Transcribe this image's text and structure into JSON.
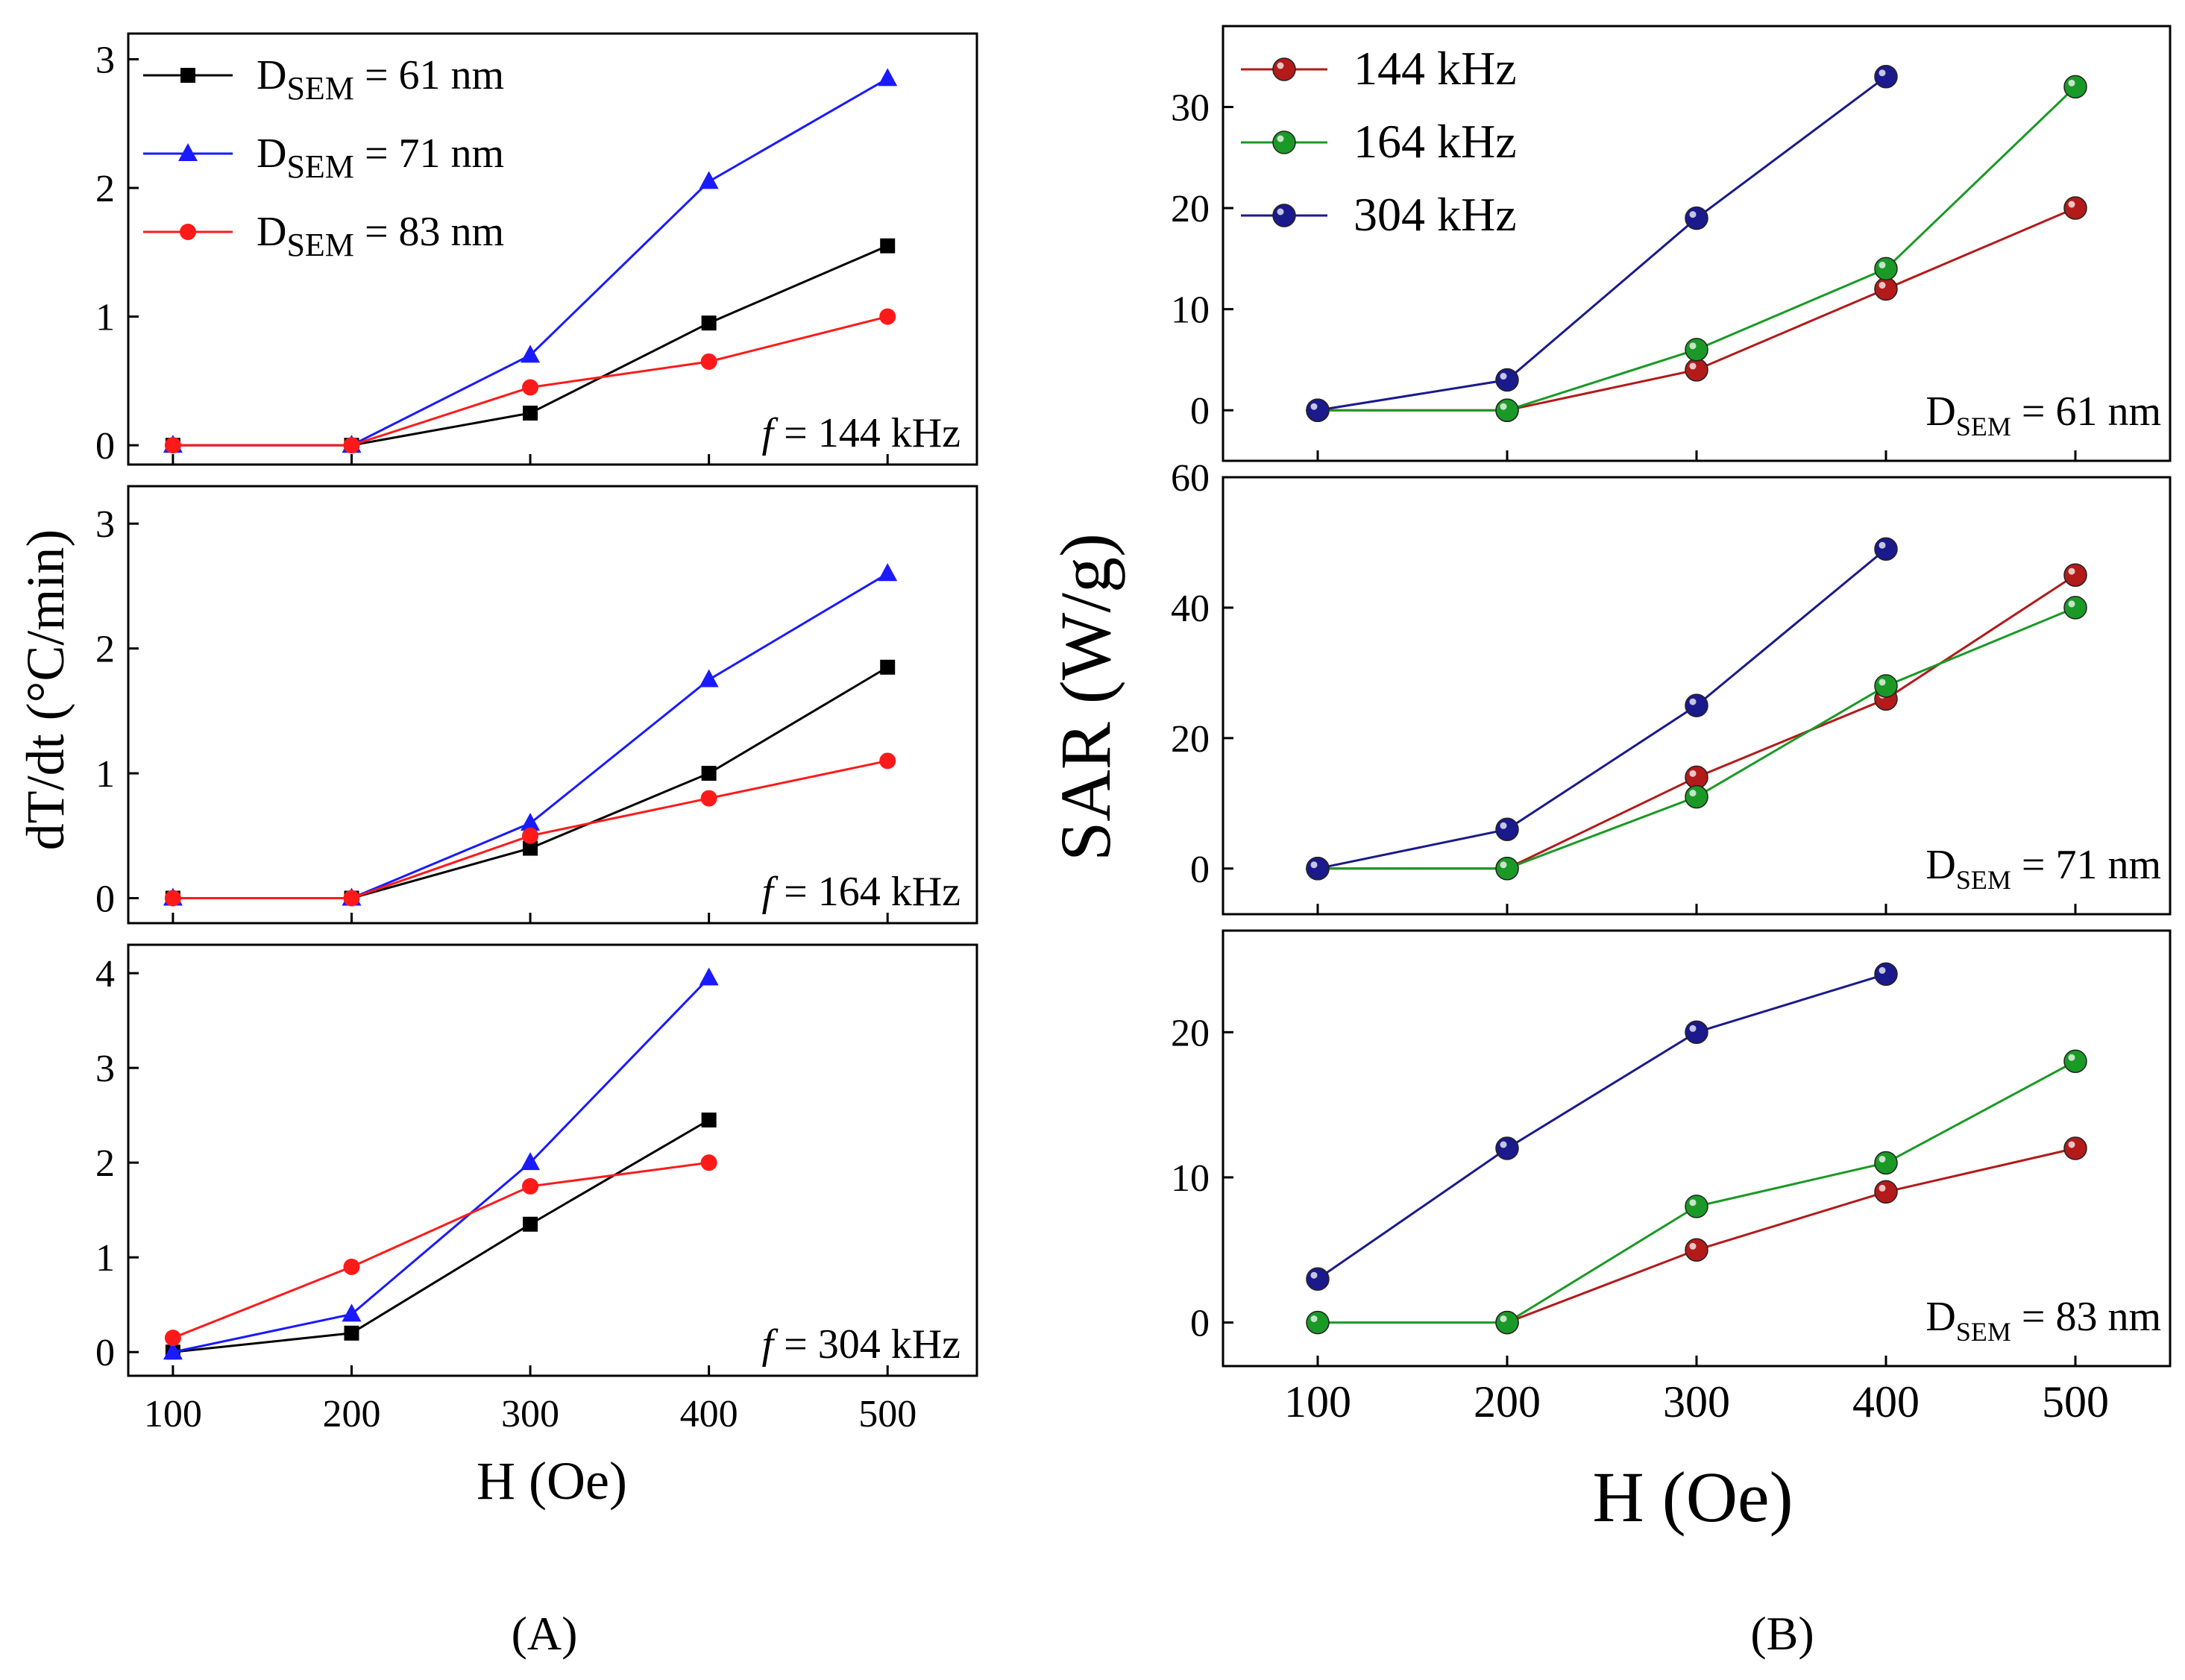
{
  "figure": {
    "panel_labels": [
      "(A)",
      "(B)"
    ]
  },
  "colors": {
    "d61": "#000000",
    "d71": "#1a1aff",
    "d83": "#ff1a1a",
    "f144": "#b31a1a",
    "f164": "#1a9926",
    "f304": "#1a1a8c"
  },
  "chart_data": [
    {
      "id": "A1",
      "type": "line",
      "annotation_f": "f",
      "annotation_text": " = 144 kHz",
      "xlabel": "",
      "ylabel": "dT/dt (°C/min)",
      "x": [
        100,
        200,
        300,
        400,
        500
      ],
      "xlim": [
        75,
        550
      ],
      "ylim": [
        -0.15,
        3.2
      ],
      "yticks": [
        0,
        1,
        2,
        3
      ],
      "series": [
        {
          "name": "D_SEM = 61 nm",
          "label_main": "D",
          "label_sub": "SEM",
          "label_rest": " = 61 nm",
          "color_key": "d61",
          "marker": "square",
          "values": [
            0,
            0,
            0.25,
            0.95,
            1.55
          ]
        },
        {
          "name": "D_SEM = 71 nm",
          "label_main": "D",
          "label_sub": "SEM",
          "label_rest": " = 71 nm",
          "color_key": "d71",
          "marker": "triangle",
          "values": [
            0,
            0,
            0.7,
            2.05,
            2.85
          ]
        },
        {
          "name": "D_SEM = 83 nm",
          "label_main": "D",
          "label_sub": "SEM",
          "label_rest": " = 83 nm",
          "color_key": "d83",
          "marker": "circle",
          "values": [
            0,
            0,
            0.45,
            0.65,
            1.0
          ]
        }
      ]
    },
    {
      "id": "A2",
      "type": "line",
      "annotation_f": "f",
      "annotation_text": " = 164 kHz",
      "x": [
        100,
        200,
        300,
        400,
        500
      ],
      "xlim": [
        75,
        550
      ],
      "ylim": [
        -0.2,
        3.3
      ],
      "yticks": [
        0,
        1,
        2,
        3
      ],
      "series": [
        {
          "name": "D_SEM = 61 nm",
          "color_key": "d61",
          "marker": "square",
          "values": [
            0,
            0,
            0.4,
            1.0,
            1.85
          ]
        },
        {
          "name": "D_SEM = 71 nm",
          "color_key": "d71",
          "marker": "triangle",
          "values": [
            0,
            0,
            0.6,
            1.75,
            2.6
          ]
        },
        {
          "name": "D_SEM = 83 nm",
          "color_key": "d83",
          "marker": "circle",
          "values": [
            0,
            0,
            0.5,
            0.8,
            1.1
          ]
        }
      ]
    },
    {
      "id": "A3",
      "type": "line",
      "annotation_f": "f",
      "annotation_text": " = 304 kHz",
      "xlabel": "H (Oe)",
      "x": [
        100,
        200,
        300,
        400
      ],
      "xlim": [
        75,
        550
      ],
      "ylim": [
        -0.25,
        4.3
      ],
      "yticks": [
        0,
        1,
        2,
        3,
        4
      ],
      "xticks": [
        100,
        200,
        300,
        400,
        500
      ],
      "series": [
        {
          "name": "D_SEM = 61 nm",
          "color_key": "d61",
          "marker": "square",
          "values": [
            0,
            0.2,
            1.35,
            2.45
          ]
        },
        {
          "name": "D_SEM = 71 nm",
          "color_key": "d71",
          "marker": "triangle",
          "values": [
            0,
            0.4,
            2.0,
            3.95
          ]
        },
        {
          "name": "D_SEM = 83 nm",
          "color_key": "d83",
          "marker": "circle",
          "values": [
            0.15,
            0.9,
            1.75,
            2.0
          ]
        }
      ]
    },
    {
      "id": "B1",
      "type": "line",
      "annotation_main": "D",
      "annotation_sub": "SEM",
      "annotation_rest": " = 61 nm",
      "ylabel": "SAR (W/g)",
      "x": [
        100,
        200,
        300,
        400,
        500
      ],
      "xlim": [
        50,
        550
      ],
      "ylim": [
        -5,
        38
      ],
      "yticks": [
        0,
        10,
        20,
        30
      ],
      "series": [
        {
          "name": "144 kHz",
          "color_key": "f144",
          "x": [
            100,
            200,
            300,
            400,
            500
          ],
          "values": [
            0,
            0,
            4,
            12,
            20
          ]
        },
        {
          "name": "164 kHz",
          "color_key": "f164",
          "x": [
            100,
            200,
            300,
            400,
            500
          ],
          "values": [
            0,
            0,
            6,
            14,
            32
          ]
        },
        {
          "name": "304 kHz",
          "color_key": "f304",
          "x": [
            100,
            200,
            300,
            400
          ],
          "values": [
            0,
            3,
            19,
            33
          ]
        }
      ]
    },
    {
      "id": "B2",
      "type": "line",
      "annotation_main": "D",
      "annotation_sub": "SEM",
      "annotation_rest": " = 71 nm",
      "x": [
        100,
        200,
        300,
        400,
        500
      ],
      "xlim": [
        50,
        550
      ],
      "ylim": [
        -7,
        60
      ],
      "yticks": [
        0,
        20,
        40,
        60
      ],
      "series": [
        {
          "name": "144 kHz",
          "color_key": "f144",
          "x": [
            100,
            200,
            300,
            400,
            500
          ],
          "values": [
            0,
            0,
            14,
            26,
            45
          ]
        },
        {
          "name": "164 kHz",
          "color_key": "f164",
          "x": [
            100,
            200,
            300,
            400,
            500
          ],
          "values": [
            0,
            0,
            11,
            28,
            40
          ]
        },
        {
          "name": "304 kHz",
          "color_key": "f304",
          "x": [
            100,
            200,
            300,
            400
          ],
          "values": [
            0,
            6,
            25,
            49
          ]
        }
      ]
    },
    {
      "id": "B3",
      "type": "line",
      "annotation_main": "D",
      "annotation_sub": "SEM",
      "annotation_rest": " = 83 nm",
      "xlabel": "H (Oe)",
      "x": [
        100,
        200,
        300,
        400,
        500
      ],
      "xlim": [
        50,
        550
      ],
      "ylim": [
        -3,
        27
      ],
      "yticks": [
        0,
        10,
        20
      ],
      "xticks": [
        100,
        200,
        300,
        400,
        500
      ],
      "series": [
        {
          "name": "144 kHz",
          "color_key": "f144",
          "x": [
            200,
            300,
            400,
            500
          ],
          "values": [
            0,
            5,
            9,
            12
          ]
        },
        {
          "name": "164 kHz",
          "color_key": "f164",
          "x": [
            100,
            200,
            300,
            400,
            500
          ],
          "values": [
            0,
            0,
            8,
            11,
            18
          ]
        },
        {
          "name": "304 kHz",
          "color_key": "f304",
          "x": [
            100,
            200,
            300,
            400
          ],
          "values": [
            3,
            12,
            20,
            24
          ]
        }
      ]
    }
  ]
}
